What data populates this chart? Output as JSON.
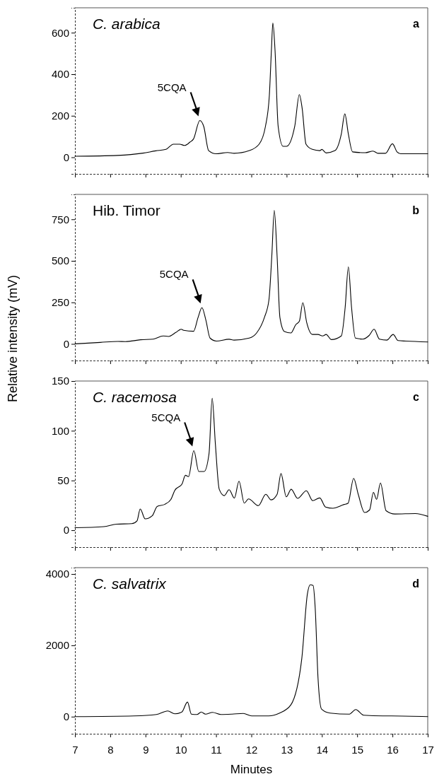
{
  "chart_data": [
    {
      "type": "line",
      "title": "C. arabica",
      "xlim": [
        7,
        17
      ],
      "xticks": [
        7,
        8,
        9,
        10,
        11,
        12,
        13,
        14,
        15,
        16,
        17
      ],
      "ylim": [
        -80,
        720
      ],
      "yticks": [
        0,
        200,
        400,
        600
      ],
      "tick_labels": "y",
      "grid": false,
      "annotations": [
        "a",
        {
          "text": "5CQA",
          "x": 10.54,
          "y": 177
        }
      ],
      "series": [
        {
          "color": "#000000",
          "x": [
            7,
            8.2,
            8.93,
            9.29,
            9.58,
            9.79,
            9.97,
            10.11,
            10.26,
            10.36,
            10.54,
            10.65,
            10.79,
            11.0,
            11.33,
            11.51,
            11.94,
            12.22,
            12.4,
            12.51,
            12.57,
            12.61,
            12.67,
            12.76,
            12.9,
            13.0,
            13.23,
            13.36,
            13.44,
            13.55,
            13.73,
            13.94,
            14.0,
            14.12,
            14.37,
            14.55,
            14.65,
            14.75,
            14.87,
            15.23,
            15.45,
            15.59,
            15.8,
            16.0,
            16.13,
            16.23,
            17
          ],
          "values": [
            5,
            9,
            20,
            31,
            38,
            63,
            63,
            57,
            73,
            88,
            177,
            149,
            32,
            17,
            23,
            19,
            32,
            63,
            149,
            297,
            520,
            647,
            520,
            149,
            53,
            53,
            149,
            302,
            236,
            63,
            38,
            32,
            38,
            21,
            32,
            112,
            209,
            112,
            26,
            22,
            30,
            19,
            19,
            65,
            26,
            17,
            17
          ]
        }
      ]
    },
    {
      "type": "line",
      "title": "Hib. Timor",
      "xlim": [
        7,
        17
      ],
      "xticks": [
        7,
        8,
        9,
        10,
        11,
        12,
        13,
        14,
        15,
        16,
        17
      ],
      "ylim": [
        -100,
        900
      ],
      "yticks": [
        0,
        250,
        500,
        750
      ],
      "tick_labels": "y",
      "grid": false,
      "annotations": [
        "b",
        {
          "text": "5CQA",
          "x": 10.6,
          "y": 218
        }
      ],
      "series": [
        {
          "color": "#000000",
          "x": [
            7,
            7.72,
            8.22,
            8.43,
            8.86,
            9.22,
            9.5,
            9.65,
            9.86,
            10.01,
            10.08,
            10.36,
            10.49,
            10.6,
            10.71,
            10.83,
            11.01,
            11.37,
            11.51,
            11.94,
            12.15,
            12.37,
            12.5,
            12.58,
            12.65,
            12.73,
            12.81,
            12.94,
            13.12,
            13.26,
            13.36,
            13.46,
            13.57,
            13.73,
            13.89,
            14.02,
            14.12,
            14.27,
            14.55,
            14.66,
            14.75,
            14.84,
            14.95,
            15.16,
            15.34,
            15.48,
            15.63,
            15.84,
            16.02,
            16.16,
            16.38,
            17
          ],
          "values": [
            0,
            9,
            15,
            14,
            25,
            29,
            48,
            45,
            69,
            88,
            82,
            76,
            159,
            218,
            144,
            35,
            17,
            28,
            23,
            35,
            66,
            159,
            267,
            529,
            804,
            529,
            159,
            74,
            66,
            116,
            136,
            248,
            128,
            57,
            57,
            48,
            57,
            26,
            48,
            221,
            464,
            221,
            35,
            29,
            51,
            88,
            29,
            23,
            57,
            20,
            17,
            12
          ]
        }
      ]
    },
    {
      "type": "line",
      "title": "C. racemosa",
      "ylabel": "Relative intensity (mV)",
      "xlim": [
        7,
        17
      ],
      "xticks": [
        7,
        8,
        9,
        10,
        11,
        12,
        13,
        14,
        15,
        16,
        17
      ],
      "ylim": [
        -17,
        150
      ],
      "yticks": [
        0,
        50,
        100,
        150
      ],
      "tick_labels": "y",
      "grid": false,
      "annotations": [
        "c",
        {
          "text": "5CQA",
          "x": 10.37,
          "y": 80
        }
      ],
      "series": [
        {
          "color": "#000000",
          "x": [
            7,
            7.82,
            8.18,
            8.61,
            8.76,
            8.85,
            8.99,
            9.19,
            9.33,
            9.54,
            9.72,
            9.83,
            10.04,
            10.13,
            10.22,
            10.37,
            10.51,
            10.66,
            10.8,
            10.89,
            10.98,
            11.09,
            11.23,
            11.37,
            11.52,
            11.65,
            11.8,
            11.92,
            12.2,
            12.41,
            12.56,
            12.73,
            12.84,
            12.99,
            13.13,
            13.31,
            13.56,
            13.74,
            13.94,
            14.1,
            14.31,
            14.63,
            14.74,
            14.9,
            15.03,
            15.21,
            15.35,
            15.46,
            15.55,
            15.66,
            15.82,
            16.07,
            16.65,
            17
          ],
          "values": [
            2.5,
            3.6,
            6.1,
            6.6,
            9.4,
            21.4,
            11.4,
            14.5,
            23.9,
            25.9,
            31,
            40,
            46.8,
            55.2,
            53.9,
            80,
            59,
            59,
            76.8,
            132.7,
            87,
            41.2,
            34.8,
            40.7,
            32.3,
            49.3,
            27.2,
            31.5,
            24.7,
            36.1,
            30.5,
            36.1,
            57,
            33.6,
            41.2,
            32,
            39.7,
            29.7,
            32.5,
            23.4,
            22.1,
            25.9,
            27,
            52.1,
            36.1,
            17.8,
            20.3,
            38.1,
            31,
            47.5,
            19.6,
            16.3,
            16.8,
            14
          ]
        }
      ]
    },
    {
      "type": "line",
      "title": "C. salvatrix",
      "xlabel": "Minutes",
      "xlim": [
        7,
        17
      ],
      "xticks": [
        7,
        8,
        9,
        10,
        11,
        12,
        13,
        14,
        15,
        16,
        17
      ],
      "ylim": [
        -480,
        4180
      ],
      "yticks": [
        0,
        2000,
        4000
      ],
      "grid": false,
      "annotations": [
        "d"
      ],
      "series": [
        {
          "color": "#000000",
          "x": [
            7,
            8.68,
            9.31,
            9.63,
            9.83,
            10.03,
            10.19,
            10.3,
            10.46,
            10.58,
            10.7,
            10.9,
            11.14,
            11.45,
            11.77,
            12.01,
            12.49,
            12.8,
            13.12,
            13.43,
            13.59,
            13.67,
            13.75,
            13.81,
            13.89,
            13.99,
            14.23,
            14.78,
            14.96,
            15.18,
            15.73,
            15.97,
            17
          ],
          "values": [
            0,
            20,
            60,
            160,
            80,
            130,
            410,
            70,
            60,
            130,
            70,
            120,
            60,
            70,
            90,
            20,
            20,
            100,
            330,
            1630,
            3450,
            3700,
            3680,
            3050,
            1080,
            210,
            100,
            70,
            200,
            40,
            20,
            20,
            0
          ]
        }
      ]
    }
  ]
}
